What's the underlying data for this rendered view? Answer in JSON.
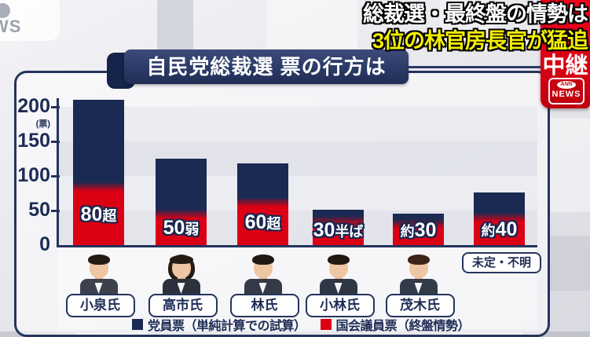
{
  "broadcast": {
    "headline_line1": "総裁選・最終盤の情勢は",
    "headline_line2": "3位の林官房長官が猛追",
    "live_badge_label": "中継",
    "logo_ann": "ANN",
    "logo_news": "NEWS",
    "watermark_text": "WS",
    "colors": {
      "headline_accent": "#f2ee00",
      "badge_red": "#d80013",
      "panel_navy": "#26345c"
    }
  },
  "panel": {
    "title": "自民党総裁選 票の行方は"
  },
  "chart_data": {
    "type": "bar",
    "stacked": true,
    "title": "自民党総裁選 票の行方は",
    "ylabel": "(票)",
    "ylim": [
      0,
      200
    ],
    "yticks": [
      0,
      50,
      100,
      150,
      200
    ],
    "grid": false,
    "legend_position": "bottom",
    "categories": [
      "小泉氏",
      "高市氏",
      "林氏",
      "小林氏",
      "茂木氏",
      "未定・不明"
    ],
    "series": [
      {
        "name": "党員票（単純計算での試算）",
        "color": "#1b2a52",
        "values": [
          126,
          80,
          56,
          16,
          15,
          36
        ]
      },
      {
        "name": "国会議員票（終盤情勢）",
        "color": "#dc0014",
        "values": [
          84,
          45,
          62,
          35,
          30,
          40
        ]
      }
    ],
    "totals": [
      210,
      125,
      118,
      51,
      45,
      76
    ],
    "bar_labels": [
      "80超",
      "50弱",
      "60超",
      "30半ば",
      "約30",
      "約40"
    ],
    "bar_label_parts": [
      [
        [
          "80",
          1
        ],
        [
          "超",
          0
        ]
      ],
      [
        [
          "50",
          1
        ],
        [
          "弱",
          0
        ]
      ],
      [
        [
          "60",
          1
        ],
        [
          "超",
          0
        ]
      ],
      [
        [
          "30",
          1
        ],
        [
          "半ば",
          0
        ]
      ],
      [
        [
          "約",
          0
        ],
        [
          "30",
          1
        ]
      ],
      [
        [
          "約",
          0
        ],
        [
          "40",
          1
        ]
      ]
    ]
  },
  "candidates": [
    {
      "name": "小泉氏",
      "gender": "m",
      "hair": "#221a13",
      "suit": "#3c414d"
    },
    {
      "name": "高市氏",
      "gender": "f",
      "hair": "#261c15",
      "suit": "#2c313d"
    },
    {
      "name": "林氏",
      "gender": "m",
      "hair": "#1f1912",
      "suit": "#343a47"
    },
    {
      "name": "小林氏",
      "gender": "m",
      "hair": "#201a13",
      "suit": "#303744"
    },
    {
      "name": "茂木氏",
      "gender": "m",
      "hair": "#3d2418",
      "suit": "#333b48"
    }
  ],
  "undecided_label": "未定・不明",
  "legend": [
    {
      "label": "党員票（単純計算での試算）",
      "color": "#1b2a52"
    },
    {
      "label": "国会議員票（終盤情勢）",
      "color": "#dc0014"
    }
  ]
}
